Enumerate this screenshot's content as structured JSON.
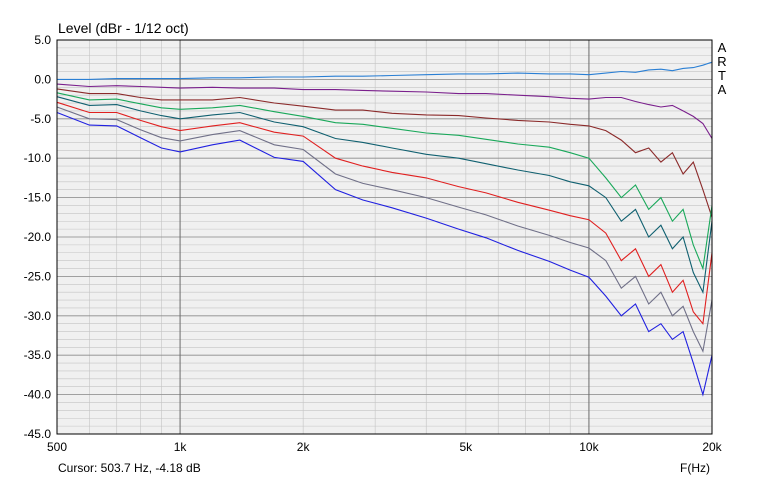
{
  "chart_data": {
    "type": "line",
    "title": "Level (dBr - 1/12 oct)",
    "xlabel": "F(Hz)",
    "x_scale": "log",
    "xlim": [
      500,
      20000
    ],
    "ylim": [
      -45,
      5
    ],
    "grid": true,
    "xticks": [
      {
        "value": 500,
        "label": "500"
      },
      {
        "value": 1000,
        "label": "1k"
      },
      {
        "value": 2000,
        "label": "2k"
      },
      {
        "value": 5000,
        "label": "5k"
      },
      {
        "value": 10000,
        "label": "10k"
      },
      {
        "value": 20000,
        "label": "20k"
      }
    ],
    "yticks": [
      {
        "value": 5,
        "label": "5.0"
      },
      {
        "value": 0,
        "label": "0.0"
      },
      {
        "value": -5,
        "label": "-5.0"
      },
      {
        "value": -10,
        "label": "-10.0"
      },
      {
        "value": -15,
        "label": "-15.0"
      },
      {
        "value": -20,
        "label": "-20.0"
      },
      {
        "value": -25,
        "label": "-25.0"
      },
      {
        "value": -30,
        "label": "-30.0"
      },
      {
        "value": -35,
        "label": "-35.0"
      },
      {
        "value": -40,
        "label": "-40.0"
      },
      {
        "value": -45,
        "label": "-45.0"
      }
    ],
    "x": [
      500,
      600,
      700,
      800,
      900,
      1000,
      1200,
      1400,
      1700,
      2000,
      2400,
      2800,
      3300,
      4000,
      4800,
      5600,
      6700,
      8000,
      9000,
      10000,
      11000,
      12000,
      13000,
      14000,
      15000,
      16000,
      17000,
      18000,
      19000,
      20000
    ],
    "series": [
      {
        "color": "#2a7fd4",
        "values": [
          0.0,
          0.0,
          0.1,
          0.1,
          0.1,
          0.1,
          0.2,
          0.2,
          0.3,
          0.3,
          0.4,
          0.4,
          0.5,
          0.6,
          0.7,
          0.7,
          0.8,
          0.7,
          0.7,
          0.6,
          0.8,
          1.0,
          0.9,
          1.2,
          1.3,
          1.1,
          1.4,
          1.5,
          1.8,
          2.2
        ]
      },
      {
        "color": "#7a1f8c",
        "values": [
          -0.6,
          -0.9,
          -0.8,
          -0.9,
          -1.0,
          -1.1,
          -1.0,
          -1.1,
          -1.1,
          -1.3,
          -1.3,
          -1.4,
          -1.5,
          -1.6,
          -1.8,
          -1.8,
          -2.0,
          -2.2,
          -2.4,
          -2.5,
          -2.3,
          -2.3,
          -2.8,
          -3.2,
          -3.5,
          -3.3,
          -4.0,
          -4.7,
          -5.6,
          -7.5
        ]
      },
      {
        "color": "#8b2a2a",
        "values": [
          -1.2,
          -1.8,
          -1.8,
          -2.3,
          -2.6,
          -2.6,
          -2.6,
          -2.3,
          -3.0,
          -3.4,
          -3.9,
          -3.9,
          -4.3,
          -4.5,
          -4.6,
          -4.9,
          -5.2,
          -5.4,
          -5.7,
          -5.9,
          -6.5,
          -7.7,
          -9.3,
          -8.7,
          -10.5,
          -9.3,
          -12.0,
          -10.5,
          -14.0,
          -17.5
        ]
      },
      {
        "color": "#19a85a",
        "values": [
          -1.7,
          -2.6,
          -2.5,
          -3.1,
          -3.6,
          -3.8,
          -3.6,
          -3.3,
          -4.1,
          -4.7,
          -5.5,
          -5.7,
          -6.2,
          -6.8,
          -7.1,
          -7.6,
          -8.2,
          -8.6,
          -9.3,
          -10.0,
          -12.5,
          -15.0,
          -13.4,
          -16.5,
          -15.0,
          -18.0,
          -16.5,
          -21.0,
          -24.0,
          -16.0
        ]
      },
      {
        "color": "#106070",
        "values": [
          -2.2,
          -3.3,
          -3.2,
          -4.0,
          -4.6,
          -5.0,
          -4.5,
          -4.2,
          -5.4,
          -6.0,
          -7.5,
          -8.0,
          -8.7,
          -9.5,
          -10.0,
          -10.7,
          -11.5,
          -12.2,
          -13.0,
          -13.5,
          -15.0,
          -18.0,
          -16.5,
          -20.0,
          -18.5,
          -21.5,
          -20.0,
          -24.5,
          -27.0,
          -18.0
        ]
      },
      {
        "color": "#e02020",
        "values": [
          -2.9,
          -4.2,
          -4.2,
          -5.2,
          -6.0,
          -6.5,
          -5.9,
          -5.5,
          -6.7,
          -7.2,
          -10.0,
          -11.0,
          -11.8,
          -12.5,
          -13.6,
          -14.4,
          -15.6,
          -16.6,
          -17.3,
          -17.8,
          -19.5,
          -23.0,
          -21.5,
          -25.0,
          -23.5,
          -27.0,
          -25.5,
          -29.5,
          -31.0,
          -22.0
        ]
      },
      {
        "color": "#707088",
        "values": [
          -3.5,
          -5.0,
          -5.1,
          -6.4,
          -7.4,
          -7.8,
          -7.0,
          -6.5,
          -8.3,
          -8.9,
          -12.0,
          -13.2,
          -14.0,
          -15.0,
          -16.2,
          -17.2,
          -18.6,
          -19.8,
          -20.7,
          -21.4,
          -23.0,
          -26.5,
          -25.0,
          -28.5,
          -27.0,
          -30.0,
          -28.8,
          -32.0,
          -34.5,
          -28.0
        ]
      },
      {
        "color": "#2020e0",
        "values": [
          -4.2,
          -5.8,
          -5.9,
          -7.4,
          -8.7,
          -9.2,
          -8.3,
          -7.7,
          -9.9,
          -10.4,
          -14.0,
          -15.3,
          -16.3,
          -17.6,
          -19.0,
          -20.1,
          -21.7,
          -23.1,
          -24.2,
          -25.1,
          -27.5,
          -30.0,
          -28.5,
          -32.0,
          -31.0,
          -33.0,
          -32.0,
          -36.0,
          -40.0,
          -35.0
        ]
      }
    ]
  },
  "cursor_readout": "Cursor: 503.7 Hz, -4.18 dB",
  "brand_letters": [
    "A",
    "R",
    "T",
    "A"
  ]
}
